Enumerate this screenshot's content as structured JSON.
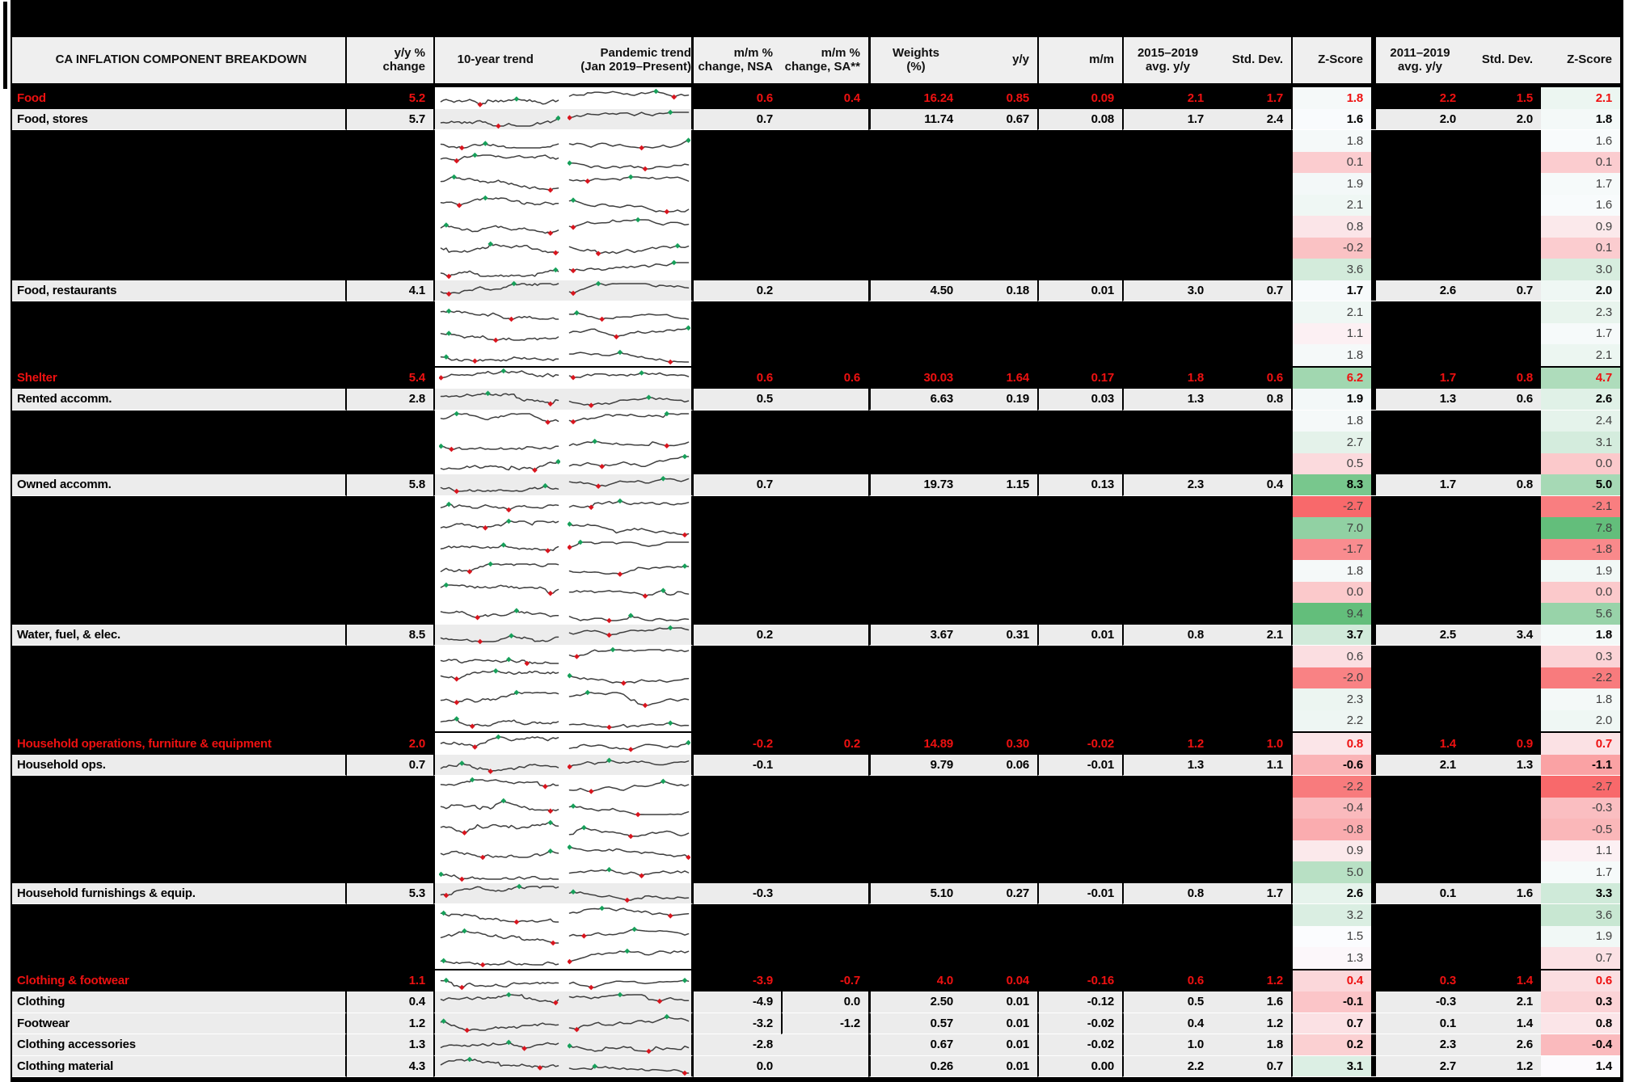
{
  "chart_data": {
    "type": "table",
    "headers": {
      "component": "CA INFLATION COMPONENT BREAKDOWN",
      "yoy_change": "y/y %\nchange",
      "trend_10y": "10-year trend",
      "trend_pandemic": "Pandemic trend\n(Jan 2019–Present)",
      "mm_nsa": "m/m %\nchange, NSA",
      "mm_sa": "m/m %\nchange, SA**",
      "weights": "Weights\n(%)",
      "yy": "y/y",
      "mm": "m/m",
      "avg_15_19": "2015–2019\navg. y/y",
      "std_15_19": "Std. Dev.",
      "z_15_19": "Z-Score",
      "avg_11_19": "2011–2019\navg. y/y",
      "std_11_19": "Std. Dev.",
      "z_11_19": "Z-Score"
    },
    "sparkline_columns": {
      "ten_year_points": 46,
      "pandemic_points": 34,
      "line_color": "#3f3f3f",
      "min_marker_color": "#d9151e",
      "max_marker_color": "#17a05a"
    },
    "z_colorscale": {
      "min_color": "#F8696B",
      "mid_color": "#FCFCFF",
      "max_color": "#63BE7B",
      "midpoint": 1.45
    },
    "rows": [
      {
        "type": "section",
        "label": "Food",
        "yoy": "5.2",
        "mm_nsa": "0.6",
        "mm_sa": "0.4",
        "weight": "16.24",
        "yy": "0.85",
        "mm": "0.09",
        "avg_15_19": "2.1",
        "sd_15_19": "1.7",
        "z_15_19": "1.8",
        "avg_11_19": "2.2",
        "sd_11_19": "1.5",
        "z_11_19": "2.1"
      },
      {
        "type": "component",
        "label": "Food, stores",
        "yoy": "5.7",
        "mm_nsa": "0.7",
        "mm_sa": "",
        "weight": "11.74",
        "yy": "0.67",
        "mm": "0.08",
        "avg_15_19": "1.7",
        "sd_15_19": "2.4",
        "z_15_19": "1.6",
        "avg_11_19": "2.0",
        "sd_11_19": "2.0",
        "z_11_19": "1.8"
      },
      {
        "type": "hidden",
        "z_15_19": "1.8",
        "z_11_19": "1.6"
      },
      {
        "type": "hidden",
        "z_15_19": "0.1",
        "z_11_19": "0.1"
      },
      {
        "type": "hidden",
        "z_15_19": "1.9",
        "z_11_19": "1.7"
      },
      {
        "type": "hidden",
        "z_15_19": "2.1",
        "z_11_19": "1.6"
      },
      {
        "type": "hidden",
        "z_15_19": "0.8",
        "z_11_19": "0.9"
      },
      {
        "type": "hidden",
        "z_15_19": "-0.2",
        "z_11_19": "0.1"
      },
      {
        "type": "hidden",
        "z_15_19": "3.6",
        "z_11_19": "3.0"
      },
      {
        "type": "component",
        "label": "Food, restaurants",
        "yoy": "4.1",
        "mm_nsa": "0.2",
        "mm_sa": "",
        "weight": "4.50",
        "yy": "0.18",
        "mm": "0.01",
        "avg_15_19": "3.0",
        "sd_15_19": "0.7",
        "z_15_19": "1.7",
        "avg_11_19": "2.6",
        "sd_11_19": "0.7",
        "z_11_19": "2.0"
      },
      {
        "type": "hidden",
        "z_15_19": "2.1",
        "z_11_19": "2.3"
      },
      {
        "type": "hidden",
        "z_15_19": "1.1",
        "z_11_19": "1.7"
      },
      {
        "type": "hidden",
        "z_15_19": "1.8",
        "z_11_19": "2.1"
      },
      {
        "type": "section",
        "label": "Shelter",
        "yoy": "5.4",
        "mm_nsa": "0.6",
        "mm_sa": "0.6",
        "weight": "30.03",
        "yy": "1.64",
        "mm": "0.17",
        "avg_15_19": "1.8",
        "sd_15_19": "0.6",
        "z_15_19": "6.2",
        "avg_11_19": "1.7",
        "sd_11_19": "0.8",
        "z_11_19": "4.7"
      },
      {
        "type": "component",
        "label": "Rented accomm.",
        "yoy": "2.8",
        "mm_nsa": "0.5",
        "mm_sa": "",
        "weight": "6.63",
        "yy": "0.19",
        "mm": "0.03",
        "avg_15_19": "1.3",
        "sd_15_19": "0.8",
        "z_15_19": "1.9",
        "avg_11_19": "1.3",
        "sd_11_19": "0.6",
        "z_11_19": "2.6"
      },
      {
        "type": "hidden",
        "z_15_19": "1.8",
        "z_11_19": "2.4"
      },
      {
        "type": "hidden",
        "z_15_19": "2.7",
        "z_11_19": "3.1"
      },
      {
        "type": "hidden",
        "z_15_19": "0.5",
        "z_11_19": "0.0"
      },
      {
        "type": "component",
        "label": "Owned accomm.",
        "yoy": "5.8",
        "mm_nsa": "0.7",
        "mm_sa": "",
        "weight": "19.73",
        "yy": "1.15",
        "mm": "0.13",
        "avg_15_19": "2.3",
        "sd_15_19": "0.4",
        "z_15_19": "8.3",
        "avg_11_19": "1.7",
        "sd_11_19": "0.8",
        "z_11_19": "5.0"
      },
      {
        "type": "hidden",
        "z_15_19": "-2.7",
        "z_11_19": "-2.1"
      },
      {
        "type": "hidden",
        "z_15_19": "7.0",
        "z_11_19": "7.8"
      },
      {
        "type": "hidden",
        "z_15_19": "-1.7",
        "z_11_19": "-1.8"
      },
      {
        "type": "hidden",
        "z_15_19": "1.8",
        "z_11_19": "1.9"
      },
      {
        "type": "hidden",
        "z_15_19": "0.0",
        "z_11_19": "0.0"
      },
      {
        "type": "hidden",
        "z_15_19": "9.4",
        "z_11_19": "5.6"
      },
      {
        "type": "component",
        "label": "Water, fuel, & elec.",
        "yoy": "8.5",
        "mm_nsa": "0.2",
        "mm_sa": "",
        "weight": "3.67",
        "yy": "0.31",
        "mm": "0.01",
        "avg_15_19": "0.8",
        "sd_15_19": "2.1",
        "z_15_19": "3.7",
        "avg_11_19": "2.5",
        "sd_11_19": "3.4",
        "z_11_19": "1.8"
      },
      {
        "type": "hidden",
        "z_15_19": "0.6",
        "z_11_19": "0.3"
      },
      {
        "type": "hidden",
        "z_15_19": "-2.0",
        "z_11_19": "-2.2"
      },
      {
        "type": "hidden",
        "z_15_19": "2.3",
        "z_11_19": "1.8"
      },
      {
        "type": "hidden",
        "z_15_19": "2.2",
        "z_11_19": "2.0"
      },
      {
        "type": "section",
        "label": "Household operations, furniture & equipment",
        "yoy": "2.0",
        "mm_nsa": "-0.2",
        "mm_sa": "0.2",
        "weight": "14.89",
        "yy": "0.30",
        "mm": "-0.02",
        "avg_15_19": "1.2",
        "sd_15_19": "1.0",
        "z_15_19": "0.8",
        "avg_11_19": "1.4",
        "sd_11_19": "0.9",
        "z_11_19": "0.7"
      },
      {
        "type": "component",
        "label": "Household ops.",
        "yoy": "0.7",
        "mm_nsa": "-0.1",
        "mm_sa": "",
        "weight": "9.79",
        "yy": "0.06",
        "mm": "-0.01",
        "avg_15_19": "1.3",
        "sd_15_19": "1.1",
        "z_15_19": "-0.6",
        "avg_11_19": "2.1",
        "sd_11_19": "1.3",
        "z_11_19": "-1.1"
      },
      {
        "type": "hidden",
        "z_15_19": "-2.2",
        "z_11_19": "-2.7"
      },
      {
        "type": "hidden",
        "z_15_19": "-0.4",
        "z_11_19": "-0.3"
      },
      {
        "type": "hidden",
        "z_15_19": "-0.8",
        "z_11_19": "-0.5"
      },
      {
        "type": "hidden",
        "z_15_19": "0.9",
        "z_11_19": "1.1"
      },
      {
        "type": "hidden",
        "z_15_19": "5.0",
        "z_11_19": "1.7"
      },
      {
        "type": "component",
        "label": "Household furnishings & equip.",
        "yoy": "5.3",
        "mm_nsa": "-0.3",
        "mm_sa": "",
        "weight": "5.10",
        "yy": "0.27",
        "mm": "-0.01",
        "avg_15_19": "0.8",
        "sd_15_19": "1.7",
        "z_15_19": "2.6",
        "avg_11_19": "0.1",
        "sd_11_19": "1.6",
        "z_11_19": "3.3"
      },
      {
        "type": "hidden",
        "z_15_19": "3.2",
        "z_11_19": "3.6"
      },
      {
        "type": "hidden",
        "z_15_19": "1.5",
        "z_11_19": "1.9"
      },
      {
        "type": "hidden",
        "z_15_19": "1.3",
        "z_11_19": "0.7"
      },
      {
        "type": "section",
        "label": "Clothing & footwear",
        "yoy": "1.1",
        "mm_nsa": "-3.9",
        "mm_sa": "-0.7",
        "weight": "4.0",
        "yy": "0.04",
        "mm": "-0.16",
        "avg_15_19": "0.6",
        "sd_15_19": "1.2",
        "z_15_19": "0.4",
        "avg_11_19": "0.3",
        "sd_11_19": "1.4",
        "z_11_19": "0.6"
      },
      {
        "type": "component",
        "label": "Clothing",
        "yoy": "0.4",
        "mm_nsa": "-4.9",
        "mm_sa": "0.0",
        "weight": "2.50",
        "yy": "0.01",
        "mm": "-0.12",
        "avg_15_19": "0.5",
        "sd_15_19": "1.6",
        "z_15_19": "-0.1",
        "avg_11_19": "-0.3",
        "sd_11_19": "2.1",
        "z_11_19": "0.3"
      },
      {
        "type": "component",
        "label": "Footwear",
        "yoy": "1.2",
        "mm_nsa": "-3.2",
        "mm_sa": "-1.2",
        "weight": "0.57",
        "yy": "0.01",
        "mm": "-0.02",
        "avg_15_19": "0.4",
        "sd_15_19": "1.2",
        "z_15_19": "0.7",
        "avg_11_19": "0.1",
        "sd_11_19": "1.4",
        "z_11_19": "0.8"
      },
      {
        "type": "component",
        "label": "Clothing accessories",
        "yoy": "1.3",
        "mm_nsa": "-2.8",
        "mm_sa": "",
        "weight": "0.67",
        "yy": "0.01",
        "mm": "-0.02",
        "avg_15_19": "1.0",
        "sd_15_19": "1.8",
        "z_15_19": "0.2",
        "avg_11_19": "2.3",
        "sd_11_19": "2.6",
        "z_11_19": "-0.4"
      },
      {
        "type": "component",
        "label": "Clothing material",
        "yoy": "4.3",
        "mm_nsa": "0.0",
        "mm_sa": "",
        "weight": "0.26",
        "yy": "0.01",
        "mm": "0.00",
        "avg_15_19": "2.2",
        "sd_15_19": "0.7",
        "z_15_19": "3.1",
        "avg_11_19": "2.7",
        "sd_11_19": "1.2",
        "z_11_19": "1.4"
      }
    ]
  },
  "colors": {
    "section_text": "#ee1111",
    "component_bg": "#ececec",
    "header_bg": "#efefef",
    "hidden_z_text": "#3f3f3f"
  }
}
